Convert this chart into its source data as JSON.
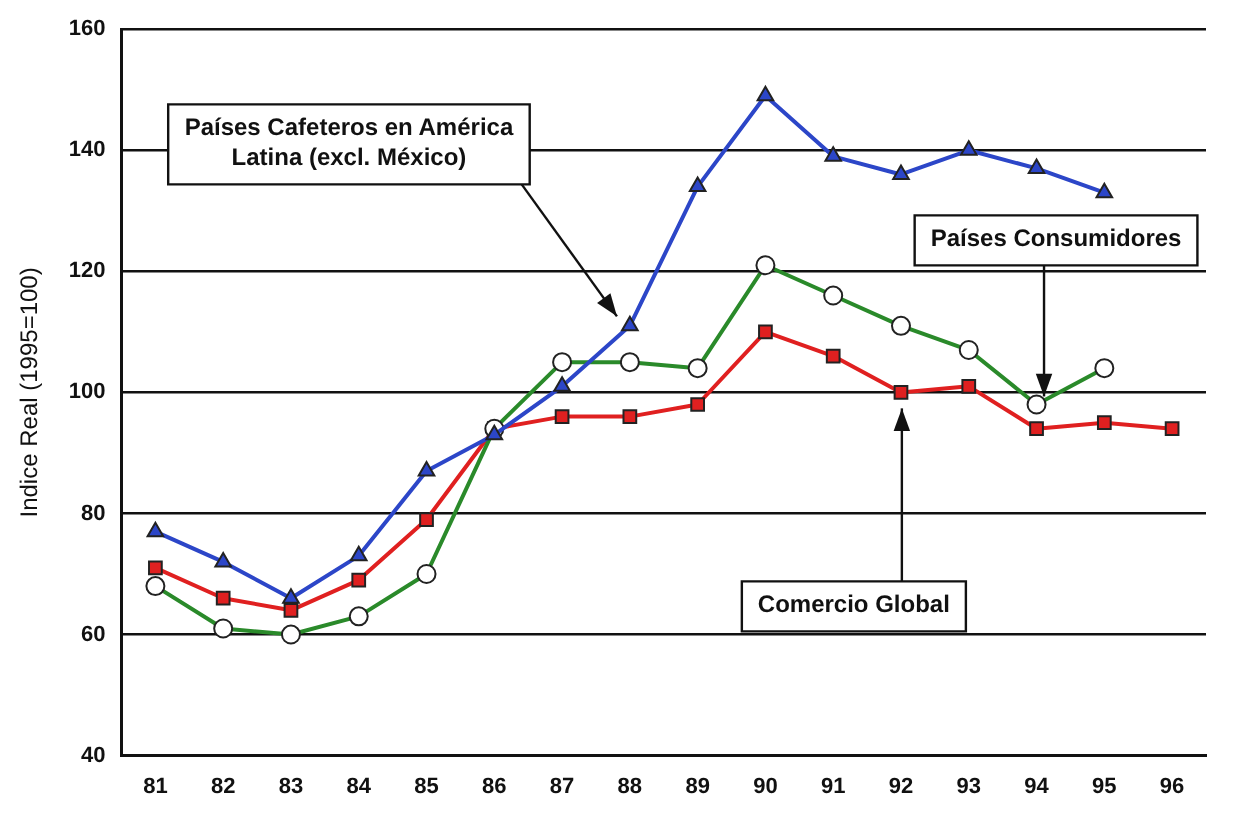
{
  "chart_data": {
    "type": "line",
    "ylabel": "Indice Real (1995=100)",
    "categories": [
      "81",
      "82",
      "83",
      "84",
      "85",
      "86",
      "87",
      "88",
      "89",
      "90",
      "91",
      "92",
      "93",
      "94",
      "95",
      "96"
    ],
    "series": [
      {
        "color": "#2c46c8",
        "marker": "triangle",
        "values": [
          77,
          72,
          66,
          73,
          87,
          93,
          101,
          111,
          134,
          149,
          139,
          136,
          140,
          137,
          133,
          null
        ]
      },
      {
        "color": "#2a8a2a",
        "marker": "circle",
        "values": [
          68,
          61,
          60,
          63,
          70,
          94,
          105,
          105,
          104,
          121,
          116,
          111,
          107,
          98,
          104,
          null
        ]
      },
      {
        "color": "#e02020",
        "marker": "square",
        "values": [
          71,
          66,
          64,
          69,
          79,
          94,
          96,
          96,
          98,
          110,
          106,
          100,
          101,
          94,
          95,
          94
        ]
      }
    ],
    "annotations": [
      {
        "text": "Países Cafeteros en América\nLatina (excl. México)",
        "x": "88",
        "y": 111
      },
      {
        "text": "Países Consumidores",
        "x": "94",
        "y": 97
      },
      {
        "text": "Comercio Global",
        "x": "92",
        "y": 100
      }
    ],
    "ylim": [
      40,
      160
    ],
    "yticks": [
      40,
      60,
      80,
      100,
      120,
      140,
      160
    ],
    "grid": "y",
    "legend": false
  }
}
